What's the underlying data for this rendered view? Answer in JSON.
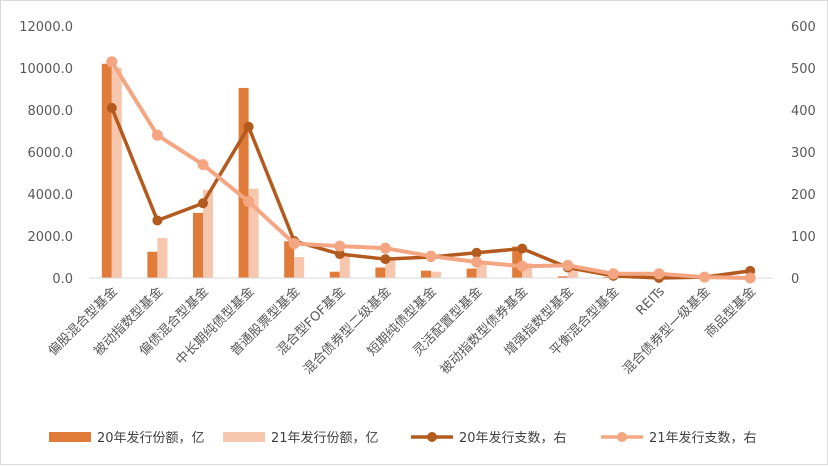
{
  "chart_data": {
    "type": "bar",
    "categories": [
      "偏股混合型基金",
      "被动指数型基金",
      "偏债混合型基金",
      "中长期纯债型基金",
      "普通股票型基金",
      "混合型FOF基金",
      "混合债券型二级基金",
      "短期纯债型基金",
      "灵活配置型基金",
      "被动指数型债券基金",
      "增强指数型基金",
      "平衡混合型基金",
      "REITs",
      "混合债券型一级基金",
      "商品型基金"
    ],
    "series": [
      {
        "name": "20年发行份额，亿",
        "kind": "bar",
        "axis": "left",
        "color": "#E07B39",
        "values": [
          10200,
          1250,
          3100,
          9050,
          1750,
          300,
          500,
          350,
          450,
          1500,
          80,
          50,
          0,
          10,
          0
        ]
      },
      {
        "name": "21年发行份额，亿",
        "kind": "bar",
        "axis": "left",
        "color": "#F7C6AE",
        "values": [
          10000,
          1900,
          4200,
          4250,
          1000,
          1100,
          1000,
          300,
          800,
          700,
          400,
          50,
          100,
          10,
          0
        ]
      },
      {
        "name": "20年发行支数，右",
        "kind": "line",
        "axis": "right",
        "color": "#B35A1F",
        "values": [
          405,
          137,
          178,
          360,
          88,
          57,
          45,
          50,
          60,
          70,
          25,
          5,
          0,
          2,
          17
        ]
      },
      {
        "name": "21年发行支数，右",
        "kind": "line",
        "axis": "right",
        "color": "#F4A582",
        "values": [
          515,
          340,
          270,
          182,
          82,
          76,
          71,
          52,
          38,
          28,
          30,
          10,
          10,
          2,
          0
        ]
      }
    ],
    "yleft": {
      "min": 0,
      "max": 12000,
      "step": 2000,
      "ticks": [
        "0.0",
        "2000.0",
        "4000.0",
        "6000.0",
        "8000.0",
        "10000.0",
        "12000.0"
      ]
    },
    "yright": {
      "min": 0,
      "max": 600,
      "step": 100,
      "ticks": [
        "0",
        "100",
        "200",
        "300",
        "400",
        "500",
        "600"
      ]
    },
    "grid": false,
    "legend_position": "bottom"
  }
}
